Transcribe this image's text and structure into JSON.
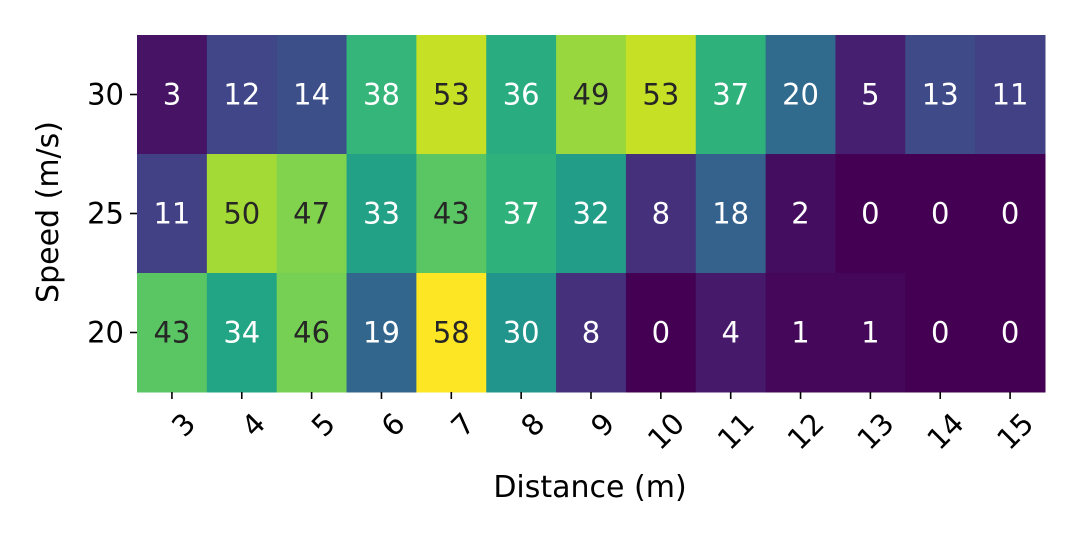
{
  "chart_data": {
    "type": "heatmap",
    "title": "",
    "xlabel": "Distance (m)",
    "ylabel": "Speed (m/s)",
    "x_categories": [
      "3",
      "4",
      "5",
      "6",
      "7",
      "8",
      "9",
      "10",
      "11",
      "12",
      "13",
      "14",
      "15"
    ],
    "y_categories": [
      "30",
      "25",
      "20"
    ],
    "values": [
      [
        3,
        12,
        14,
        38,
        53,
        36,
        49,
        53,
        37,
        20,
        5,
        13,
        11
      ],
      [
        11,
        50,
        47,
        33,
        43,
        37,
        32,
        8,
        18,
        2,
        0,
        0,
        0
      ],
      [
        43,
        34,
        46,
        19,
        58,
        30,
        8,
        0,
        4,
        1,
        1,
        0,
        0
      ]
    ],
    "vmin": 0,
    "vmax": 58,
    "colormap": "viridis",
    "annotations": true,
    "colorbar": false,
    "x_tick_rotation_deg": 45,
    "text_colors": {
      "light": "#ffffff",
      "dark": "#262626"
    },
    "tick_color": "#000000"
  }
}
